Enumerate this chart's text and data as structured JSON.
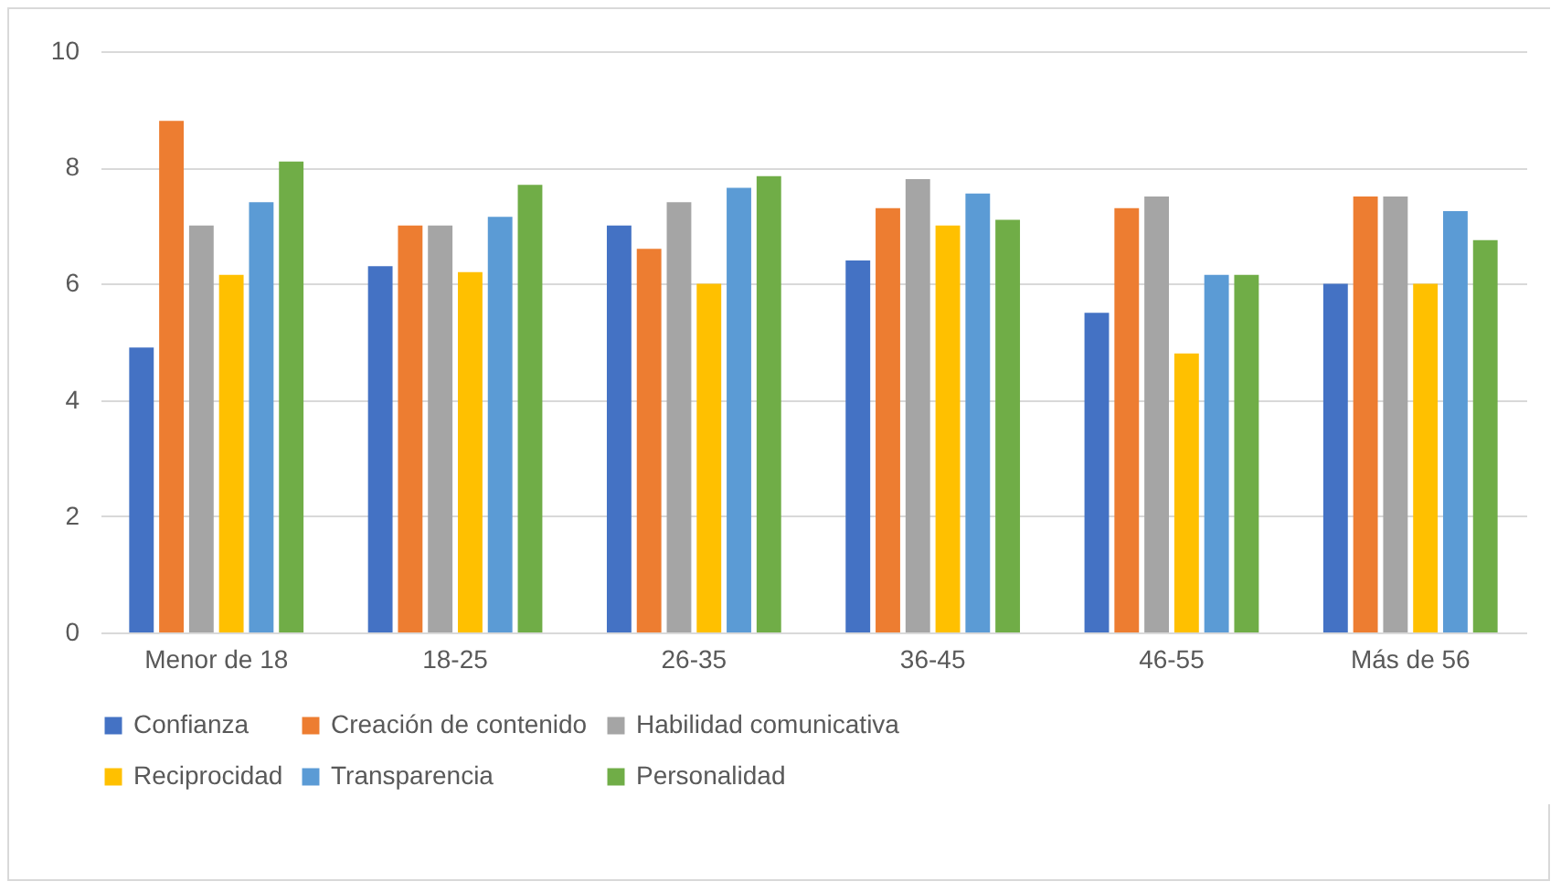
{
  "chart_data": {
    "type": "bar",
    "categories": [
      "Menor de 18",
      "18-25",
      "26-35",
      "36-45",
      "46-55",
      "Más de 56"
    ],
    "series": [
      {
        "name": "Confianza",
        "color": "#4472c4",
        "values": [
          4.9,
          6.3,
          7.0,
          6.4,
          5.5,
          6.0
        ]
      },
      {
        "name": "Creación de contenido",
        "color": "#ed7d31",
        "values": [
          8.8,
          7.0,
          6.6,
          7.3,
          7.3,
          7.5
        ]
      },
      {
        "name": "Habilidad comunicativa",
        "color": "#a5a5a5",
        "values": [
          7.0,
          7.0,
          7.4,
          7.8,
          7.5,
          7.5
        ]
      },
      {
        "name": "Reciprocidad",
        "color": "#ffc000",
        "values": [
          6.15,
          6.2,
          6.0,
          7.0,
          4.8,
          6.0
        ]
      },
      {
        "name": "Transparencia",
        "color": "#5b9bd5",
        "values": [
          7.4,
          7.15,
          7.65,
          7.55,
          6.15,
          7.25
        ]
      },
      {
        "name": "Personalidad",
        "color": "#70ad47",
        "values": [
          8.1,
          7.7,
          7.85,
          7.1,
          6.15,
          6.75
        ]
      }
    ],
    "ylim": [
      0,
      10
    ],
    "yticks": [
      0,
      2,
      4,
      6,
      8,
      10
    ],
    "grid": "y",
    "legend": "bottom"
  }
}
